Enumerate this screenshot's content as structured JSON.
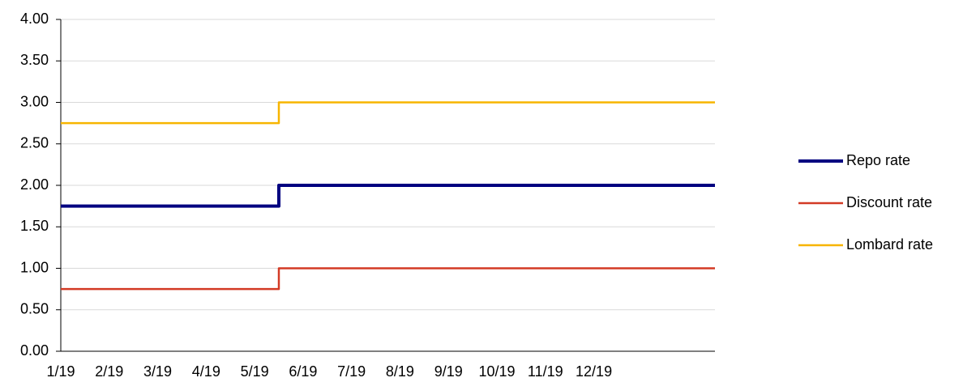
{
  "chart_data": {
    "type": "line",
    "step": true,
    "categories": [
      "1/19",
      null,
      "2/19",
      null,
      "3/19",
      null,
      "4/19",
      null,
      "5/19",
      null,
      "6/19",
      null,
      "7/19",
      null,
      "8/19",
      null,
      "9/19",
      null,
      "10/19",
      null,
      "11/19",
      null,
      "12/19",
      null,
      null,
      null,
      null,
      null
    ],
    "series": [
      {
        "name": "Repo rate",
        "color": "#000080",
        "width": 4,
        "values": [
          1.75,
          1.75,
          1.75,
          1.75,
          1.75,
          1.75,
          1.75,
          1.75,
          1.75,
          2,
          2,
          2,
          2,
          2,
          2,
          2,
          2,
          2,
          2,
          2,
          2,
          2,
          2,
          2,
          2,
          2,
          2,
          2
        ]
      },
      {
        "name": "Discount rate",
        "color": "#d33a25",
        "width": 2.5,
        "values": [
          0.75,
          0.75,
          0.75,
          0.75,
          0.75,
          0.75,
          0.75,
          0.75,
          0.75,
          1,
          1,
          1,
          1,
          1,
          1,
          1,
          1,
          1,
          1,
          1,
          1,
          1,
          1,
          1,
          1,
          1,
          1,
          1
        ]
      },
      {
        "name": "Lombard rate",
        "color": "#f7b500",
        "width": 2.5,
        "values": [
          2.75,
          2.75,
          2.75,
          2.75,
          2.75,
          2.75,
          2.75,
          2.75,
          2.75,
          3,
          3,
          3,
          3,
          3,
          3,
          3,
          3,
          3,
          3,
          3,
          3,
          3,
          3,
          3,
          3,
          3,
          3,
          3
        ]
      }
    ],
    "ylim": [
      0,
      4
    ],
    "yticks": [
      {
        "value": 0,
        "label": "0.00"
      },
      {
        "value": 0.5,
        "label": "0.50"
      },
      {
        "value": 1,
        "label": "1.00"
      },
      {
        "value": 1.5,
        "label": "1.50"
      },
      {
        "value": 2,
        "label": "2.00"
      },
      {
        "value": 2.5,
        "label": "2.50"
      },
      {
        "value": 3,
        "label": "3.00"
      },
      {
        "value": 3.5,
        "label": "3.50"
      },
      {
        "value": 4,
        "label": "4.00"
      }
    ],
    "grid": true,
    "legend": "right"
  }
}
